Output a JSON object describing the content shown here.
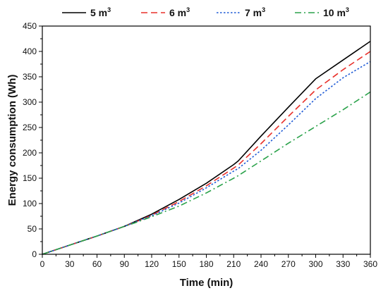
{
  "chart_data": {
    "type": "line",
    "xlabel": "Time (min)",
    "ylabel": "Energy consumption (Wh)",
    "xlim": [
      0,
      360
    ],
    "ylim": [
      0,
      450
    ],
    "xticks": [
      0,
      30,
      60,
      90,
      120,
      150,
      180,
      210,
      240,
      270,
      300,
      330,
      360
    ],
    "yticks": [
      0,
      50,
      100,
      150,
      200,
      250,
      300,
      350,
      400,
      450
    ],
    "grid": false,
    "legend_position": "top",
    "legend_unit": "m",
    "legend_unit_sup": "3",
    "x": [
      0,
      30,
      60,
      90,
      100,
      120,
      150,
      180,
      210,
      215,
      240,
      270,
      300,
      330,
      360
    ],
    "series": [
      {
        "name": "5",
        "color": "#000000",
        "dash": "solid",
        "values": [
          0,
          18,
          36,
          55,
          63,
          79,
          108,
          140,
          177,
          184,
          233,
          290,
          346,
          383,
          420
        ]
      },
      {
        "name": "6",
        "color": "#e8302a",
        "dash": "dashed",
        "values": [
          0,
          18,
          36,
          55,
          62,
          77,
          104,
          135,
          170,
          176,
          218,
          272,
          324,
          364,
          400
        ]
      },
      {
        "name": "7",
        "color": "#1f5bd6",
        "dash": "dotted",
        "values": [
          0,
          18,
          36,
          55,
          62,
          76,
          101,
          131,
          164,
          169,
          205,
          255,
          307,
          348,
          380
        ]
      },
      {
        "name": "10",
        "color": "#2aa24a",
        "dash": "dashdot",
        "values": [
          0,
          18,
          36,
          55,
          61,
          74,
          95,
          121,
          150,
          155,
          184,
          219,
          252,
          285,
          320
        ]
      }
    ]
  }
}
